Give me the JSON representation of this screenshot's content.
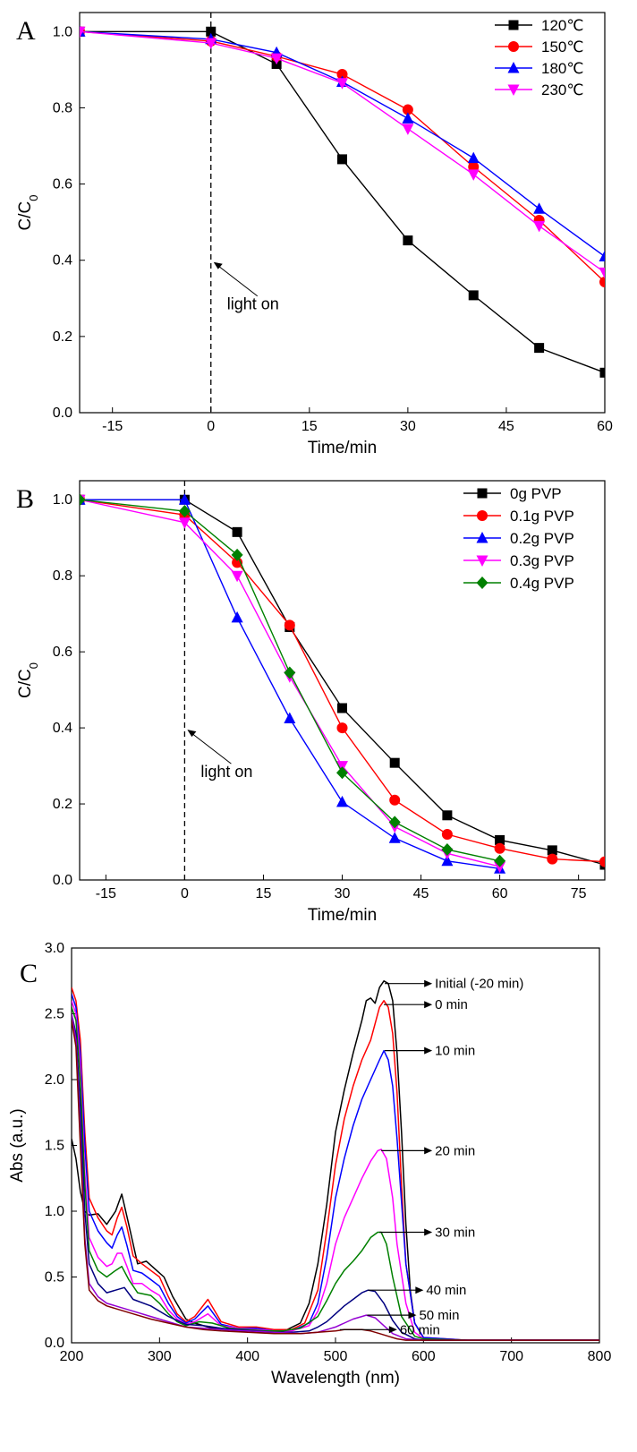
{
  "chart_data": [
    {
      "type": "line",
      "panel_label": "A",
      "xlabel": "Time/min",
      "ylabel": "C/C0",
      "xlim": [
        -20,
        60
      ],
      "ylim": [
        0,
        1.05
      ],
      "xticks": [
        -15,
        0,
        15,
        30,
        45,
        60
      ],
      "yticks": [
        0.0,
        0.2,
        0.4,
        0.6,
        0.8,
        1.0
      ],
      "annotation": "light on",
      "legend_position": "top-right",
      "series": [
        {
          "name": "120℃",
          "color": "#000000",
          "marker": "square",
          "x": [
            -20,
            0,
            10,
            20,
            30,
            40,
            50,
            60
          ],
          "y": [
            1.0,
            1.0,
            0.915,
            0.665,
            0.452,
            0.308,
            0.17,
            0.105
          ]
        },
        {
          "name": "150℃",
          "color": "#ff0000",
          "marker": "circle",
          "x": [
            -20,
            0,
            10,
            20,
            30,
            40,
            50,
            60
          ],
          "y": [
            1.0,
            0.975,
            0.935,
            0.888,
            0.795,
            0.645,
            0.505,
            0.343
          ]
        },
        {
          "name": "180℃",
          "color": "#0000ff",
          "marker": "triangle-up",
          "x": [
            -20,
            0,
            10,
            20,
            30,
            40,
            50,
            60
          ],
          "y": [
            1.0,
            0.98,
            0.945,
            0.868,
            0.772,
            0.668,
            0.535,
            0.41
          ]
        },
        {
          "name": "230℃",
          "color": "#ff00ff",
          "marker": "triangle-down",
          "x": [
            -20,
            0,
            10,
            20,
            30,
            40,
            50,
            60
          ],
          "y": [
            1.0,
            0.97,
            0.93,
            0.865,
            0.745,
            0.625,
            0.49,
            0.368
          ]
        }
      ]
    },
    {
      "type": "line",
      "panel_label": "B",
      "xlabel": "Time/min",
      "ylabel": "C/C0",
      "xlim": [
        -20,
        80
      ],
      "ylim": [
        0,
        1.05
      ],
      "xticks": [
        -15,
        0,
        15,
        30,
        45,
        60,
        75
      ],
      "yticks": [
        0.0,
        0.2,
        0.4,
        0.6,
        0.8,
        1.0
      ],
      "annotation": "light on",
      "legend_position": "top-right",
      "series": [
        {
          "name": "0g PVP",
          "color": "#000000",
          "marker": "square",
          "x": [
            -20,
            0,
            10,
            20,
            30,
            40,
            50,
            60,
            70,
            80
          ],
          "y": [
            1.0,
            1.0,
            0.915,
            0.665,
            0.452,
            0.308,
            0.17,
            0.105,
            0.078,
            0.04
          ]
        },
        {
          "name": "0.1g PVP",
          "color": "#ff0000",
          "marker": "circle",
          "x": [
            -20,
            0,
            10,
            20,
            30,
            40,
            50,
            60,
            70,
            80
          ],
          "y": [
            1.0,
            0.96,
            0.835,
            0.67,
            0.4,
            0.21,
            0.12,
            0.083,
            0.055,
            0.048
          ]
        },
        {
          "name": "0.2g PVP",
          "color": "#0000ff",
          "marker": "triangle-up",
          "x": [
            -20,
            0,
            10,
            20,
            30,
            40,
            50,
            60
          ],
          "y": [
            1.0,
            1.0,
            0.69,
            0.425,
            0.205,
            0.11,
            0.05,
            0.03
          ]
        },
        {
          "name": "0.3g PVP",
          "color": "#ff00ff",
          "marker": "triangle-down",
          "x": [
            -20,
            0,
            10,
            20,
            30,
            40,
            50,
            60
          ],
          "y": [
            1.0,
            0.94,
            0.8,
            0.535,
            0.3,
            0.14,
            0.07,
            0.035
          ]
        },
        {
          "name": "0.4g PVP",
          "color": "#008000",
          "marker": "diamond",
          "x": [
            -20,
            0,
            10,
            20,
            30,
            40,
            50,
            60
          ],
          "y": [
            1.0,
            0.97,
            0.855,
            0.545,
            0.282,
            0.152,
            0.08,
            0.05
          ]
        }
      ]
    },
    {
      "type": "line",
      "panel_label": "C",
      "xlabel": "Wavelength (nm)",
      "ylabel": "Abs (a.u.)",
      "xlim": [
        200,
        800
      ],
      "ylim": [
        0,
        3.0
      ],
      "xticks": [
        200,
        300,
        400,
        500,
        600,
        700,
        800
      ],
      "yticks": [
        0.0,
        0.5,
        1.0,
        1.5,
        2.0,
        2.5,
        3.0
      ],
      "series": [
        {
          "name": "Initial (-20 min)",
          "color": "#000000",
          "x": [
            200,
            205,
            210,
            215,
            220,
            230,
            240,
            250,
            257,
            265,
            275,
            285,
            295,
            305,
            315,
            330,
            340,
            355,
            370,
            390,
            400,
            415,
            430,
            445,
            460,
            470,
            480,
            490,
            500,
            510,
            520,
            530,
            535,
            540,
            545,
            550,
            555,
            560,
            565,
            570,
            575,
            580,
            585,
            590,
            600,
            620,
            650,
            700,
            800
          ],
          "y": [
            1.55,
            1.4,
            1.15,
            1.0,
            0.97,
            0.98,
            0.9,
            1.0,
            1.13,
            0.9,
            0.6,
            0.62,
            0.56,
            0.5,
            0.35,
            0.18,
            0.15,
            0.12,
            0.1,
            0.09,
            0.09,
            0.08,
            0.08,
            0.1,
            0.15,
            0.3,
            0.6,
            1.05,
            1.6,
            1.92,
            2.2,
            2.45,
            2.6,
            2.62,
            2.58,
            2.7,
            2.75,
            2.73,
            2.6,
            2.2,
            1.6,
            0.9,
            0.4,
            0.15,
            0.04,
            0.02,
            0.02,
            0.02,
            0.02
          ]
        },
        {
          "name": "0 min",
          "color": "#ff0000",
          "x": [
            200,
            205,
            210,
            215,
            220,
            230,
            240,
            246,
            252,
            257,
            263,
            270,
            280,
            290,
            300,
            310,
            320,
            330,
            340,
            355,
            370,
            390,
            410,
            430,
            450,
            465,
            480,
            490,
            500,
            510,
            520,
            530,
            540,
            550,
            555,
            560,
            565,
            570,
            575,
            580,
            590,
            600,
            650,
            800
          ],
          "y": [
            2.7,
            2.6,
            2.3,
            1.6,
            1.1,
            0.95,
            0.85,
            0.82,
            0.95,
            1.03,
            0.88,
            0.66,
            0.6,
            0.55,
            0.5,
            0.35,
            0.22,
            0.16,
            0.2,
            0.33,
            0.16,
            0.12,
            0.12,
            0.1,
            0.1,
            0.15,
            0.4,
            0.85,
            1.35,
            1.7,
            1.95,
            2.15,
            2.3,
            2.55,
            2.6,
            2.55,
            2.35,
            1.9,
            1.2,
            0.6,
            0.15,
            0.04,
            0.02,
            0.02
          ]
        },
        {
          "name": "10 min",
          "color": "#0000ff",
          "x": [
            200,
            205,
            210,
            215,
            220,
            230,
            240,
            246,
            252,
            257,
            263,
            270,
            280,
            290,
            300,
            310,
            320,
            330,
            340,
            355,
            370,
            390,
            410,
            430,
            450,
            470,
            480,
            490,
            500,
            510,
            520,
            530,
            540,
            550,
            555,
            560,
            565,
            570,
            580,
            590,
            600,
            650,
            800
          ],
          "y": [
            2.65,
            2.55,
            2.2,
            1.5,
            1.0,
            0.85,
            0.76,
            0.72,
            0.82,
            0.88,
            0.74,
            0.55,
            0.53,
            0.48,
            0.43,
            0.3,
            0.2,
            0.15,
            0.18,
            0.28,
            0.14,
            0.11,
            0.11,
            0.09,
            0.09,
            0.15,
            0.3,
            0.65,
            1.1,
            1.4,
            1.65,
            1.85,
            2.0,
            2.15,
            2.22,
            2.15,
            1.95,
            1.55,
            0.6,
            0.15,
            0.04,
            0.02,
            0.02
          ]
        },
        {
          "name": "20 min",
          "color": "#ff00ff",
          "x": [
            200,
            205,
            210,
            215,
            220,
            230,
            240,
            246,
            252,
            257,
            263,
            270,
            280,
            290,
            300,
            310,
            320,
            330,
            340,
            355,
            370,
            390,
            410,
            430,
            450,
            470,
            480,
            490,
            500,
            510,
            520,
            530,
            540,
            548,
            552,
            558,
            565,
            570,
            580,
            590,
            600,
            650,
            800
          ],
          "y": [
            2.6,
            2.5,
            2.1,
            1.3,
            0.8,
            0.65,
            0.58,
            0.6,
            0.68,
            0.68,
            0.58,
            0.45,
            0.45,
            0.4,
            0.36,
            0.25,
            0.18,
            0.14,
            0.16,
            0.22,
            0.13,
            0.11,
            0.1,
            0.09,
            0.09,
            0.13,
            0.24,
            0.45,
            0.75,
            0.95,
            1.1,
            1.25,
            1.38,
            1.46,
            1.47,
            1.4,
            1.1,
            0.75,
            0.3,
            0.08,
            0.03,
            0.02,
            0.02
          ]
        },
        {
          "name": "30 min",
          "color": "#008000",
          "x": [
            200,
            205,
            210,
            215,
            220,
            230,
            240,
            250,
            257,
            265,
            275,
            290,
            300,
            310,
            320,
            330,
            345,
            360,
            380,
            400,
            420,
            440,
            460,
            480,
            490,
            500,
            510,
            520,
            530,
            540,
            548,
            552,
            558,
            565,
            575,
            590,
            600,
            650,
            800
          ],
          "y": [
            2.55,
            2.45,
            2.0,
            1.2,
            0.7,
            0.55,
            0.5,
            0.55,
            0.58,
            0.48,
            0.38,
            0.36,
            0.3,
            0.22,
            0.16,
            0.13,
            0.16,
            0.15,
            0.11,
            0.1,
            0.09,
            0.09,
            0.11,
            0.2,
            0.32,
            0.45,
            0.55,
            0.62,
            0.7,
            0.8,
            0.84,
            0.84,
            0.75,
            0.5,
            0.2,
            0.05,
            0.03,
            0.02,
            0.02
          ]
        },
        {
          "name": "40 min",
          "color": "#000080",
          "x": [
            200,
            205,
            210,
            215,
            220,
            230,
            240,
            250,
            260,
            270,
            290,
            310,
            330,
            350,
            370,
            390,
            410,
            430,
            450,
            470,
            480,
            490,
            500,
            510,
            520,
            530,
            537,
            545,
            555,
            565,
            575,
            590,
            600,
            650,
            800
          ],
          "y": [
            2.5,
            2.35,
            1.8,
            1.0,
            0.6,
            0.45,
            0.38,
            0.4,
            0.42,
            0.33,
            0.28,
            0.2,
            0.14,
            0.13,
            0.11,
            0.1,
            0.09,
            0.08,
            0.08,
            0.09,
            0.12,
            0.16,
            0.22,
            0.28,
            0.33,
            0.38,
            0.4,
            0.39,
            0.3,
            0.17,
            0.08,
            0.03,
            0.02,
            0.02,
            0.02
          ]
        },
        {
          "name": "50 min",
          "color": "#9400d3",
          "x": [
            200,
            205,
            210,
            215,
            220,
            230,
            240,
            250,
            270,
            290,
            310,
            330,
            350,
            370,
            400,
            430,
            460,
            480,
            490,
            500,
            510,
            520,
            530,
            535,
            545,
            555,
            565,
            580,
            600,
            650,
            800
          ],
          "y": [
            2.5,
            2.3,
            1.6,
            0.8,
            0.45,
            0.35,
            0.3,
            0.28,
            0.24,
            0.2,
            0.16,
            0.12,
            0.11,
            0.1,
            0.09,
            0.08,
            0.07,
            0.08,
            0.1,
            0.12,
            0.15,
            0.18,
            0.2,
            0.21,
            0.19,
            0.13,
            0.07,
            0.03,
            0.02,
            0.02,
            0.02
          ]
        },
        {
          "name": "60 min",
          "color": "#800000",
          "x": [
            200,
            205,
            210,
            215,
            220,
            230,
            240,
            250,
            270,
            290,
            310,
            330,
            350,
            370,
            400,
            430,
            460,
            480,
            500,
            510,
            520,
            530,
            540,
            550,
            560,
            570,
            580,
            600,
            650,
            800
          ],
          "y": [
            2.45,
            2.25,
            1.5,
            0.75,
            0.4,
            0.32,
            0.28,
            0.26,
            0.22,
            0.18,
            0.15,
            0.12,
            0.1,
            0.09,
            0.08,
            0.07,
            0.07,
            0.08,
            0.09,
            0.1,
            0.1,
            0.1,
            0.09,
            0.07,
            0.05,
            0.03,
            0.02,
            0.02,
            0.02,
            0.02
          ]
        }
      ],
      "arrow_labels": [
        {
          "text": "Initial (-20 min)",
          "x0": 556,
          "x1": 610,
          "y": 2.73
        },
        {
          "text": "0 min",
          "x0": 555,
          "x1": 610,
          "y": 2.57
        },
        {
          "text": "10 min",
          "x0": 556,
          "x1": 610,
          "y": 2.22
        },
        {
          "text": "20 min",
          "x0": 552,
          "x1": 610,
          "y": 1.46
        },
        {
          "text": "30 min",
          "x0": 550,
          "x1": 610,
          "y": 0.84
        },
        {
          "text": "40 min",
          "x0": 537,
          "x1": 600,
          "y": 0.4
        },
        {
          "text": "50 min",
          "x0": 536,
          "x1": 592,
          "y": 0.21
        },
        {
          "text": "60 min",
          "x0": 505,
          "x1": 570,
          "y": 0.1
        }
      ]
    }
  ]
}
